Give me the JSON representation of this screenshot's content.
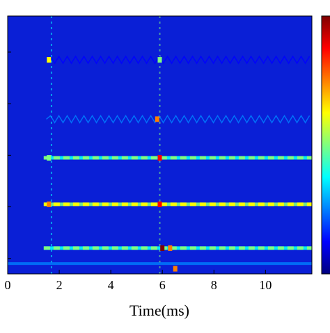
{
  "chart_data": {
    "type": "heatmap",
    "title": "",
    "xlabel": "Time(ms)",
    "ylabel": "",
    "xlim": [
      0,
      11.8
    ],
    "x_ticks": [
      0,
      2,
      4,
      6,
      8,
      10
    ],
    "x_tick_labels": [
      "0",
      "2",
      "4",
      "6",
      "8",
      "10"
    ],
    "y_tick_count": 5,
    "colormap": [
      "#00007f",
      "#0000ff",
      "#007fff",
      "#00ffff",
      "#7fff7f",
      "#ffff00",
      "#ff7f00",
      "#ff0000",
      "#7f0000"
    ],
    "background_color": "#0a1fd6",
    "colorbar": true,
    "bands": [
      {
        "level": 0.83,
        "x_start": 1.5,
        "x_end": 11.8,
        "intensity": 0.18,
        "style": "wavy"
      },
      {
        "level": 0.6,
        "x_start": 1.5,
        "x_end": 11.8,
        "intensity": 0.2,
        "style": "wavy"
      },
      {
        "level": 0.45,
        "x_start": 1.4,
        "x_end": 11.8,
        "intensity": 0.45,
        "style": "dashed"
      },
      {
        "level": 0.27,
        "x_start": 1.4,
        "x_end": 11.8,
        "intensity": 0.65,
        "style": "dashed"
      },
      {
        "level": 0.1,
        "x_start": 1.4,
        "x_end": 11.8,
        "intensity": 0.55,
        "style": "dashed"
      },
      {
        "level": 0.04,
        "x_start": 0,
        "x_end": 11.8,
        "intensity": 0.3,
        "style": "solid"
      }
    ],
    "hotspots": [
      {
        "x": 1.6,
        "level": 0.83,
        "intensity": 0.62
      },
      {
        "x": 1.6,
        "level": 0.27,
        "intensity": 0.7
      },
      {
        "x": 1.6,
        "level": 0.45,
        "intensity": 0.55
      },
      {
        "x": 5.9,
        "level": 0.27,
        "intensity": 0.9
      },
      {
        "x": 5.9,
        "level": 0.45,
        "intensity": 0.85
      },
      {
        "x": 6.0,
        "level": 0.1,
        "intensity": 1.0
      },
      {
        "x": 5.8,
        "level": 0.6,
        "intensity": 0.8
      },
      {
        "x": 6.3,
        "level": 0.1,
        "intensity": 0.7
      },
      {
        "x": 6.5,
        "level": 0.02,
        "intensity": 0.75
      },
      {
        "x": 5.9,
        "level": 0.83,
        "intensity": 0.55
      }
    ],
    "vertical_lines": [
      {
        "x": 1.7,
        "intensity": 0.15
      },
      {
        "x": 5.9,
        "intensity": 0.22
      }
    ]
  }
}
